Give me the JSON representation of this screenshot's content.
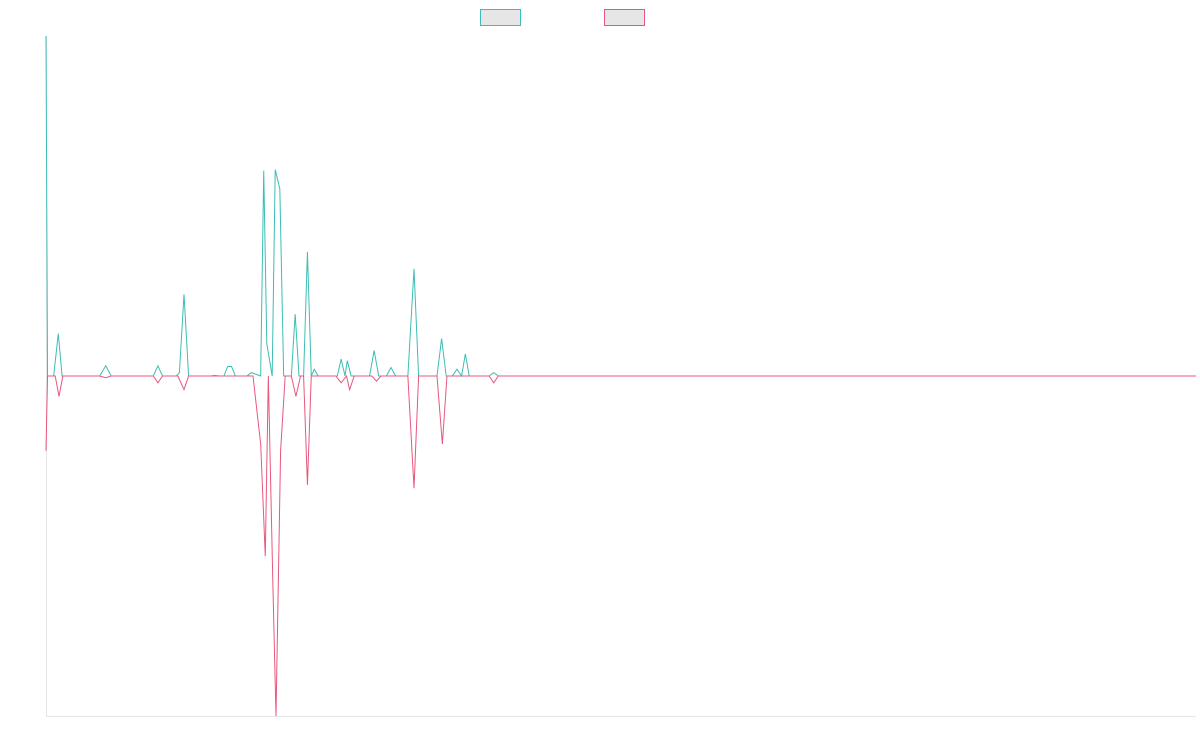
{
  "chart_data": {
    "type": "line",
    "title": "",
    "xlabel": "",
    "ylabel": "",
    "grid": false,
    "legend": "top-center",
    "x_range": [
      0,
      1500
    ],
    "ylim": [
      -1,
      1
    ],
    "series": [
      {
        "name": "",
        "color": "#3cbdb5",
        "fill": "#e6e6e6",
        "points": [
          [
            0,
            1.0
          ],
          [
            2,
            0.0
          ],
          [
            10,
            0.0
          ],
          [
            16,
            0.125
          ],
          [
            21,
            0.0
          ],
          [
            70,
            0.0
          ],
          [
            78,
            0.03
          ],
          [
            85,
            0.0
          ],
          [
            140,
            0.0
          ],
          [
            146,
            0.03
          ],
          [
            152,
            0.0
          ],
          [
            170,
            0.0
          ],
          [
            174,
            0.01
          ],
          [
            180,
            0.24
          ],
          [
            186,
            0.0
          ],
          [
            215,
            0.0
          ],
          [
            220,
            0.002
          ],
          [
            226,
            0.0
          ],
          [
            232,
            0.0
          ],
          [
            237,
            0.028
          ],
          [
            242,
            0.028
          ],
          [
            247,
            0.0
          ],
          [
            255,
            0.0
          ],
          [
            262,
            0.0
          ],
          [
            268,
            0.01
          ],
          [
            280,
            0.0
          ],
          [
            284,
            0.604
          ],
          [
            288,
            0.095
          ],
          [
            295,
            0.0
          ],
          [
            299,
            0.607
          ],
          [
            305,
            0.55
          ],
          [
            310,
            0.0
          ],
          [
            320,
            0.0
          ],
          [
            325,
            0.182
          ],
          [
            330,
            0.0
          ],
          [
            336,
            0.0
          ],
          [
            341,
            0.365
          ],
          [
            346,
            0.0
          ],
          [
            350,
            0.02
          ],
          [
            355,
            0.0
          ],
          [
            380,
            0.0
          ],
          [
            385,
            0.05
          ],
          [
            390,
            0.0
          ],
          [
            393,
            0.045
          ],
          [
            398,
            0.0
          ],
          [
            422,
            0.0
          ],
          [
            428,
            0.075
          ],
          [
            434,
            0.0
          ],
          [
            444,
            0.0
          ],
          [
            450,
            0.025
          ],
          [
            456,
            0.0
          ],
          [
            472,
            0.0
          ],
          [
            480,
            0.315
          ],
          [
            486,
            0.0
          ],
          [
            510,
            0.0
          ],
          [
            516,
            0.11
          ],
          [
            522,
            0.0
          ],
          [
            530,
            0.0
          ],
          [
            536,
            0.02
          ],
          [
            542,
            0.0
          ],
          [
            547,
            0.065
          ],
          [
            552,
            0.0
          ],
          [
            578,
            0.0
          ],
          [
            584,
            0.01
          ],
          [
            590,
            0.0
          ],
          [
            1500,
            0.0
          ]
        ]
      },
      {
        "name": "",
        "color": "#e8577d",
        "fill": "#e6e6e6",
        "points": [
          [
            0,
            -0.22
          ],
          [
            2,
            0.0
          ],
          [
            12,
            0.0
          ],
          [
            17,
            -0.06
          ],
          [
            22,
            0.0
          ],
          [
            70,
            0.0
          ],
          [
            78,
            -0.005
          ],
          [
            85,
            0.0
          ],
          [
            140,
            0.0
          ],
          [
            146,
            -0.02
          ],
          [
            152,
            0.0
          ],
          [
            172,
            0.0
          ],
          [
            180,
            -0.04
          ],
          [
            186,
            0.0
          ],
          [
            270,
            0.0
          ],
          [
            280,
            -0.2
          ],
          [
            286,
            -0.53
          ],
          [
            290,
            0.0
          ],
          [
            296,
            -0.62
          ],
          [
            300,
            -1.0
          ],
          [
            306,
            -0.22
          ],
          [
            312,
            0.0
          ],
          [
            320,
            0.0
          ],
          [
            326,
            -0.06
          ],
          [
            332,
            0.0
          ],
          [
            336,
            0.0
          ],
          [
            341,
            -0.32
          ],
          [
            346,
            0.0
          ],
          [
            378,
            0.0
          ],
          [
            385,
            -0.02
          ],
          [
            392,
            0.0
          ],
          [
            396,
            -0.04
          ],
          [
            402,
            0.0
          ],
          [
            425,
            0.0
          ],
          [
            431,
            -0.015
          ],
          [
            437,
            0.0
          ],
          [
            472,
            0.0
          ],
          [
            480,
            -0.33
          ],
          [
            486,
            0.0
          ],
          [
            510,
            0.0
          ],
          [
            517,
            -0.2
          ],
          [
            523,
            0.0
          ],
          [
            578,
            0.0
          ],
          [
            584,
            -0.02
          ],
          [
            590,
            0.0
          ],
          [
            1500,
            0.0
          ]
        ]
      }
    ]
  }
}
